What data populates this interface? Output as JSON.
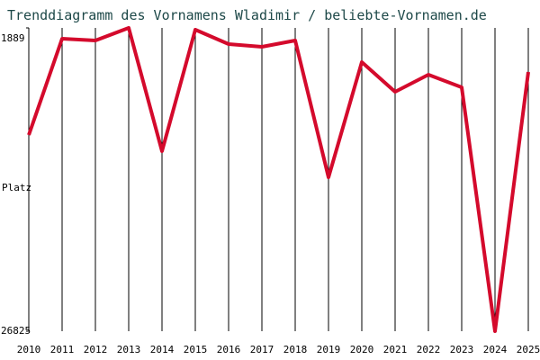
{
  "chart_data": {
    "type": "line",
    "title": "Trenddiagramm des Vornamens Wladimir / beliebte-Vornamen.de",
    "y_label": "Platz",
    "x": [
      2010,
      2011,
      2012,
      2013,
      2014,
      2015,
      2016,
      2017,
      2018,
      2019,
      2020,
      2021,
      2022,
      2023,
      2024,
      2025
    ],
    "xlim": [
      2010,
      2025
    ],
    "xticks": [
      2010,
      2011,
      2012,
      2013,
      2014,
      2015,
      2016,
      2017,
      2018,
      2019,
      2020,
      2021,
      2022,
      2023,
      2024,
      2025
    ],
    "series": [
      {
        "name": "Wladimir",
        "color": "#d40a2c",
        "values": [
          10695,
          2777,
          2925,
          1889,
          12027,
          2037,
          3221,
          3443,
          2925,
          14173,
          4701,
          7143,
          5737,
          6773,
          26825,
          5515
        ]
      }
    ],
    "ylim": [
      1889,
      26825
    ],
    "y_inverted": true,
    "yticks": [
      1889,
      26825
    ],
    "grid": true
  }
}
